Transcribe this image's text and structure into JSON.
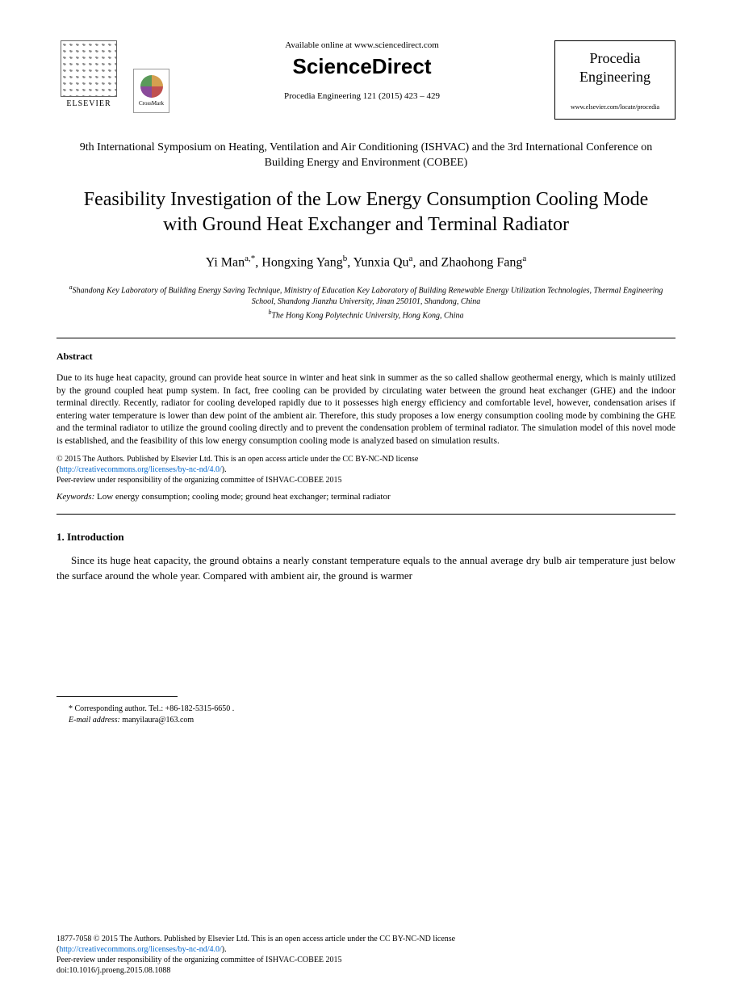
{
  "header": {
    "elsevier_label": "ELSEVIER",
    "crossmark_label": "CrossMark",
    "available_online": "Available online at www.sciencedirect.com",
    "sciencedirect": "ScienceDirect",
    "citation": "Procedia Engineering 121 (2015) 423 – 429",
    "journal_name_line1": "Procedia",
    "journal_name_line2": "Engineering",
    "journal_url": "www.elsevier.com/locate/procedia"
  },
  "conference": "9th International Symposium on Heating, Ventilation and Air Conditioning (ISHVAC) and the 3rd International Conference on Building Energy and Environment (COBEE)",
  "title": "Feasibility Investigation of the Low Energy Consumption Cooling Mode with Ground Heat Exchanger and Terminal Radiator",
  "authors": {
    "a1_name": "Yi Man",
    "a1_sup": "a,*",
    "a2_name": "Hongxing Yang",
    "a2_sup": "b",
    "a3_name": "Yunxia Qu",
    "a3_sup": "a",
    "a4_name": "Zhaohong Fang",
    "a4_sup": "a"
  },
  "affiliations": {
    "aff_a_sup": "a",
    "aff_a": "Shandong Key Laboratory of Building Energy Saving Technique, Ministry of Education Key Laboratory of Building Renewable Energy Utilization Technologies, Thermal Engineering School, Shandong Jianzhu University, Jinan 250101, Shandong, China",
    "aff_b_sup": "b",
    "aff_b": "The Hong Kong Polytechnic University, Hong Kong, China"
  },
  "abstract": {
    "heading": "Abstract",
    "text": "Due to its huge heat capacity, ground can provide heat source in winter and heat sink in summer as the so called shallow geothermal energy, which is mainly utilized by the ground coupled heat pump system. In fact, free cooling can be provided by circulating water between the ground heat exchanger (GHE) and the indoor terminal directly. Recently, radiator for cooling developed rapidly due to it possesses high energy efficiency and comfortable level, however, condensation arises if entering water temperature is lower than dew point of the ambient air. Therefore, this study proposes a low energy consumption cooling mode by combining the GHE and the terminal radiator to utilize the ground cooling directly and to prevent the condensation problem of terminal radiator. The simulation model of this novel mode is established, and the feasibility of this low energy consumption cooling mode is analyzed based on simulation results."
  },
  "copyright": {
    "line1": "© 2015 The Authors. Published by Elsevier Ltd. This is an open access article under the CC BY-NC-ND license",
    "license_url": "http://creativecommons.org/licenses/by-nc-nd/4.0/",
    "line2": "Peer-review under responsibility of the organizing committee of ISHVAC-COBEE 2015"
  },
  "keywords": {
    "label": "Keywords:",
    "text": " Low energy consumption; cooling mode; ground heat exchanger; terminal radiator"
  },
  "section1": {
    "heading": "1. Introduction",
    "text": "Since its huge heat capacity, the ground obtains a nearly constant temperature equals to the annual average dry bulb air temperature just below the surface around the whole year. Compared with ambient air, the ground is warmer"
  },
  "footnote": {
    "corresponding": "* Corresponding author. Tel.: +86-182-5315-6650 .",
    "email_label": "E-mail address:",
    "email": " manyilaura@163.com"
  },
  "footer": {
    "issn": "1877-7058 © 2015 The Authors. Published by Elsevier Ltd. This is an open access article under the CC BY-NC-ND license",
    "license_url": "http://creativecommons.org/licenses/by-nc-nd/4.0/",
    "peer_review": "Peer-review under responsibility of the organizing committee of ISHVAC-COBEE 2015",
    "doi": "doi:10.1016/j.proeng.2015.08.1088"
  }
}
